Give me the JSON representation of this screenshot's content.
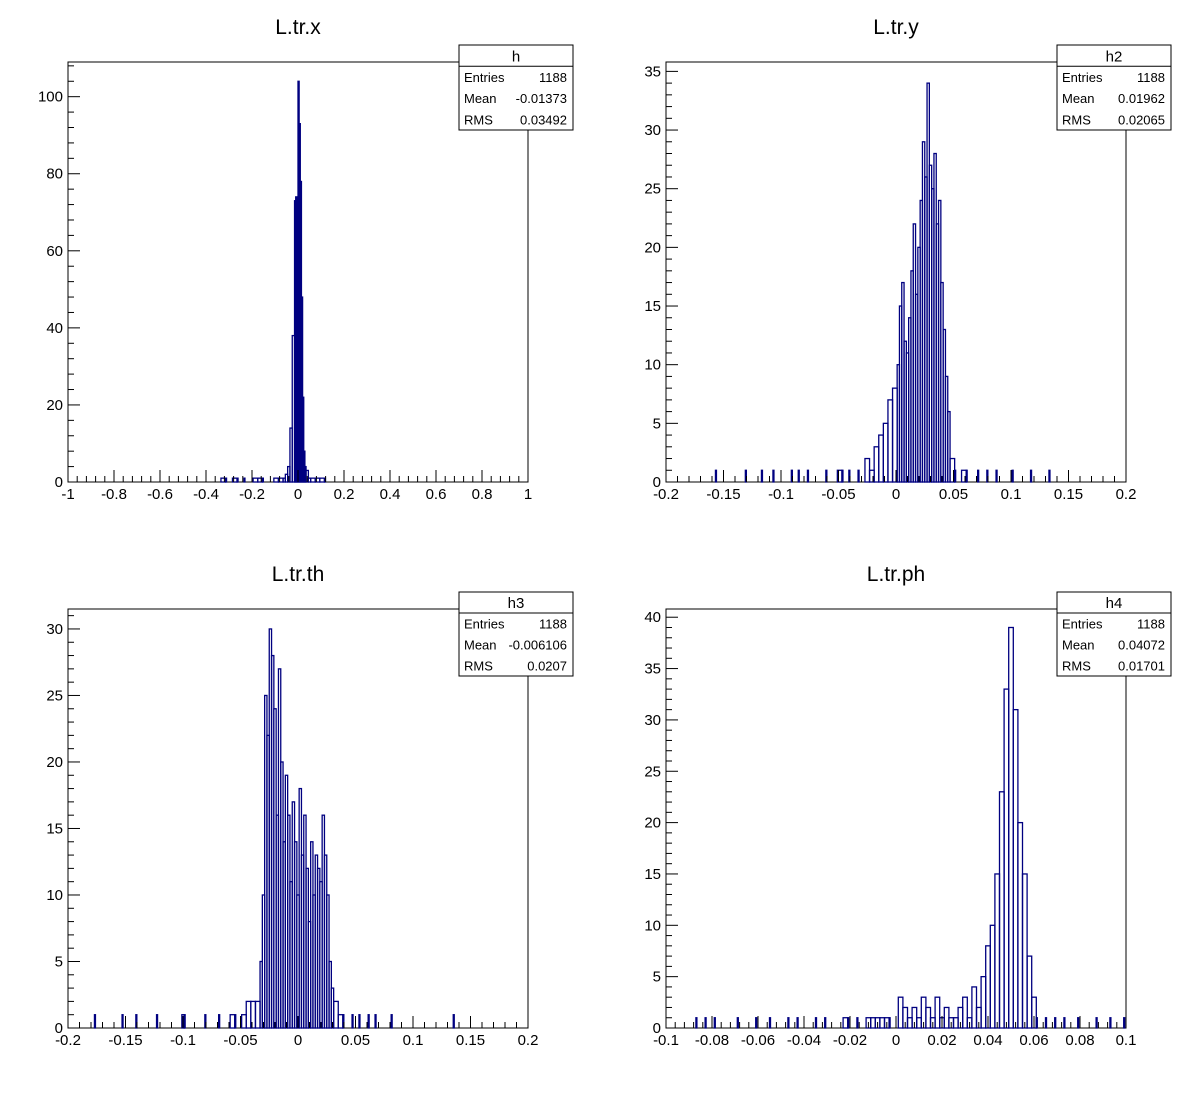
{
  "chart_data": [
    {
      "type": "bar",
      "title": "L.tr.x",
      "xlim": [
        -1,
        1
      ],
      "ylim": [
        0,
        109
      ],
      "xticks": [
        -1,
        -0.8,
        -0.6,
        -0.4,
        -0.2,
        0,
        0.2,
        0.4,
        0.6,
        0.8,
        1
      ],
      "xtick_labels": [
        "-1",
        "-0.8",
        "-0.6",
        "-0.4",
        "-0.2",
        "0",
        "0.2",
        "0.4",
        "0.6",
        "0.8",
        "1"
      ],
      "yticks": [
        0,
        20,
        40,
        60,
        80,
        100
      ],
      "ytick_labels": [
        "0",
        "20",
        "40",
        "60",
        "80",
        "100"
      ],
      "stats": {
        "name": "h",
        "entries_label": "Entries",
        "entries": "1188",
        "mean_label": "Mean",
        "mean": "-0.01373",
        "rms_label": "RMS",
        "rms": "0.03492"
      },
      "series": [
        {
          "color": "#000080",
          "bins": [
            [
              -0.335,
              1
            ],
            [
              -0.315,
              1
            ],
            [
              -0.285,
              1
            ],
            [
              -0.265,
              1
            ],
            [
              -0.235,
              1
            ],
            [
              -0.195,
              1
            ],
            [
              -0.175,
              1
            ],
            [
              -0.155,
              1
            ],
            [
              -0.105,
              1
            ],
            [
              -0.085,
              1
            ],
            [
              -0.065,
              1
            ],
            [
              -0.055,
              2
            ],
            [
              -0.045,
              4
            ],
            [
              -0.035,
              14
            ],
            [
              -0.025,
              38
            ],
            [
              -0.015,
              73
            ],
            [
              -0.01,
              74
            ],
            [
              -0.005,
              66
            ],
            [
              0.0,
              104
            ],
            [
              0.005,
              93
            ],
            [
              0.01,
              78
            ],
            [
              0.015,
              48
            ],
            [
              0.02,
              22
            ],
            [
              0.025,
              8
            ],
            [
              0.03,
              4
            ],
            [
              0.035,
              3
            ],
            [
              0.045,
              1
            ],
            [
              0.055,
              1
            ],
            [
              0.075,
              1
            ],
            [
              0.095,
              1
            ],
            [
              0.115,
              1
            ]
          ]
        }
      ]
    },
    {
      "type": "bar",
      "title": "L.tr.y",
      "xlim": [
        -0.2,
        0.2
      ],
      "ylim": [
        0,
        35.8
      ],
      "xticks": [
        -0.2,
        -0.15,
        -0.1,
        -0.05,
        0,
        0.05,
        0.1,
        0.15,
        0.2
      ],
      "xtick_labels": [
        "-0.2",
        "-0.15",
        "-0.1",
        "-0.05",
        "0",
        "0.05",
        "0.1",
        "0.15",
        "0.2"
      ],
      "yticks": [
        0,
        5,
        10,
        15,
        20,
        25,
        30,
        35
      ],
      "ytick_labels": [
        "0",
        "5",
        "10",
        "15",
        "20",
        "25",
        "30",
        "35"
      ],
      "stats": {
        "name": "h2",
        "entries_label": "Entries",
        "entries": "1188",
        "mean_label": "Mean",
        "mean": "0.01962",
        "rms_label": "RMS",
        "rms": "0.02065"
      },
      "series": [
        {
          "color": "#000080",
          "bins": [
            [
              -0.157,
              1
            ],
            [
              -0.131,
              1
            ],
            [
              -0.117,
              1
            ],
            [
              -0.107,
              1
            ],
            [
              -0.091,
              1
            ],
            [
              -0.085,
              1
            ],
            [
              -0.077,
              1
            ],
            [
              -0.061,
              1
            ],
            [
              -0.051,
              1
            ],
            [
              -0.047,
              1
            ],
            [
              -0.041,
              1
            ],
            [
              -0.033,
              1
            ],
            [
              -0.027,
              2
            ],
            [
              -0.023,
              1
            ],
            [
              -0.019,
              3
            ],
            [
              -0.015,
              4
            ],
            [
              -0.011,
              5
            ],
            [
              -0.007,
              7
            ],
            [
              -0.003,
              8
            ],
            [
              0.001,
              10
            ],
            [
              0.003,
              15
            ],
            [
              0.005,
              17
            ],
            [
              0.007,
              12
            ],
            [
              0.009,
              11
            ],
            [
              0.011,
              14
            ],
            [
              0.013,
              18
            ],
            [
              0.015,
              22
            ],
            [
              0.017,
              16
            ],
            [
              0.019,
              20
            ],
            [
              0.021,
              24
            ],
            [
              0.023,
              29
            ],
            [
              0.025,
              26
            ],
            [
              0.027,
              34
            ],
            [
              0.029,
              27
            ],
            [
              0.031,
              25
            ],
            [
              0.033,
              28
            ],
            [
              0.035,
              22
            ],
            [
              0.037,
              24
            ],
            [
              0.039,
              17
            ],
            [
              0.041,
              13
            ],
            [
              0.043,
              9
            ],
            [
              0.045,
              6
            ],
            [
              0.047,
              2
            ],
            [
              0.051,
              1
            ],
            [
              0.057,
              1
            ],
            [
              0.061,
              1
            ],
            [
              0.071,
              1
            ],
            [
              0.079,
              1
            ],
            [
              0.087,
              1
            ],
            [
              0.101,
              1
            ],
            [
              0.117,
              1
            ],
            [
              0.133,
              1
            ]
          ]
        }
      ]
    },
    {
      "type": "bar",
      "title": "L.tr.th",
      "xlim": [
        -0.2,
        0.2
      ],
      "ylim": [
        0,
        31.5
      ],
      "xticks": [
        -0.2,
        -0.15,
        -0.1,
        -0.05,
        0,
        0.05,
        0.1,
        0.15,
        0.2
      ],
      "xtick_labels": [
        "-0.2",
        "-0.15",
        "-0.1",
        "-0.05",
        "0",
        "0.05",
        "0.1",
        "0.15",
        "0.2"
      ],
      "yticks": [
        0,
        5,
        10,
        15,
        20,
        25,
        30
      ],
      "ytick_labels": [
        "0",
        "5",
        "10",
        "15",
        "20",
        "25",
        "30"
      ],
      "stats": {
        "name": "h3",
        "entries_label": "Entries",
        "entries": "1188",
        "mean_label": "Mean",
        "mean": "-0.006106",
        "rms_label": "RMS",
        "rms": "0.0207"
      },
      "series": [
        {
          "color": "#000080",
          "bins": [
            [
              -0.177,
              1
            ],
            [
              -0.153,
              1
            ],
            [
              -0.141,
              1
            ],
            [
              -0.123,
              1
            ],
            [
              -0.101,
              1
            ],
            [
              -0.099,
              1
            ],
            [
              -0.081,
              1
            ],
            [
              -0.069,
              1
            ],
            [
              -0.059,
              1
            ],
            [
              -0.055,
              1
            ],
            [
              -0.049,
              1
            ],
            [
              -0.045,
              2
            ],
            [
              -0.041,
              2
            ],
            [
              -0.037,
              2
            ],
            [
              -0.033,
              5
            ],
            [
              -0.031,
              10
            ],
            [
              -0.029,
              25
            ],
            [
              -0.027,
              22
            ],
            [
              -0.025,
              30
            ],
            [
              -0.023,
              28
            ],
            [
              -0.021,
              24
            ],
            [
              -0.019,
              16
            ],
            [
              -0.017,
              27
            ],
            [
              -0.015,
              20
            ],
            [
              -0.013,
              14
            ],
            [
              -0.011,
              19
            ],
            [
              -0.009,
              16
            ],
            [
              -0.007,
              11
            ],
            [
              -0.005,
              17
            ],
            [
              -0.003,
              14
            ],
            [
              -0.001,
              10
            ],
            [
              0.001,
              18
            ],
            [
              0.003,
              13
            ],
            [
              0.005,
              16
            ],
            [
              0.007,
              12
            ],
            [
              0.009,
              8
            ],
            [
              0.011,
              14
            ],
            [
              0.013,
              10
            ],
            [
              0.015,
              13
            ],
            [
              0.017,
              12
            ],
            [
              0.019,
              11
            ],
            [
              0.021,
              16
            ],
            [
              0.023,
              13
            ],
            [
              0.025,
              10
            ],
            [
              0.027,
              5
            ],
            [
              0.029,
              3
            ],
            [
              0.031,
              2
            ],
            [
              0.035,
              1
            ],
            [
              0.039,
              1
            ],
            [
              0.047,
              1
            ],
            [
              0.053,
              1
            ],
            [
              0.061,
              1
            ],
            [
              0.067,
              1
            ],
            [
              0.081,
              1
            ],
            [
              0.135,
              1
            ]
          ]
        }
      ]
    },
    {
      "type": "bar",
      "title": "L.tr.ph",
      "xlim": [
        -0.1,
        0.1
      ],
      "ylim": [
        0,
        40.8
      ],
      "xticks": [
        -0.1,
        -0.08,
        -0.06,
        -0.04,
        -0.02,
        0,
        0.02,
        0.04,
        0.06,
        0.08,
        0.1
      ],
      "xtick_labels": [
        "-0.1",
        "-0.08",
        "-0.06",
        "-0.04",
        "-0.02",
        "0",
        "0.02",
        "0.04",
        "0.06",
        "0.08",
        "0.1"
      ],
      "yticks": [
        0,
        5,
        10,
        15,
        20,
        25,
        30,
        35,
        40
      ],
      "ytick_labels": [
        "0",
        "5",
        "10",
        "15",
        "20",
        "25",
        "30",
        "35",
        "40"
      ],
      "stats": {
        "name": "h4",
        "entries_label": "Entries",
        "entries": "1188",
        "mean_label": "Mean",
        "mean": "0.04072",
        "rms_label": "RMS",
        "rms": "0.01701"
      },
      "series": [
        {
          "color": "#000080",
          "bins": [
            [
              -0.087,
              1
            ],
            [
              -0.083,
              1
            ],
            [
              -0.079,
              1
            ],
            [
              -0.069,
              1
            ],
            [
              -0.061,
              1
            ],
            [
              -0.055,
              1
            ],
            [
              -0.047,
              1
            ],
            [
              -0.043,
              1
            ],
            [
              -0.035,
              1
            ],
            [
              -0.031,
              1
            ],
            [
              -0.023,
              1
            ],
            [
              -0.021,
              1
            ],
            [
              -0.017,
              1
            ],
            [
              -0.013,
              1
            ],
            [
              -0.011,
              1
            ],
            [
              -0.009,
              1
            ],
            [
              -0.007,
              1
            ],
            [
              -0.005,
              1
            ],
            [
              -0.003,
              1
            ],
            [
              0.001,
              3
            ],
            [
              0.003,
              2
            ],
            [
              0.005,
              1
            ],
            [
              0.007,
              2
            ],
            [
              0.009,
              1
            ],
            [
              0.011,
              3
            ],
            [
              0.013,
              2
            ],
            [
              0.015,
              1
            ],
            [
              0.017,
              3
            ],
            [
              0.019,
              1
            ],
            [
              0.021,
              2
            ],
            [
              0.023,
              1
            ],
            [
              0.025,
              1
            ],
            [
              0.027,
              2
            ],
            [
              0.029,
              3
            ],
            [
              0.031,
              1
            ],
            [
              0.033,
              4
            ],
            [
              0.035,
              2
            ],
            [
              0.037,
              5
            ],
            [
              0.039,
              8
            ],
            [
              0.041,
              10
            ],
            [
              0.043,
              15
            ],
            [
              0.045,
              23
            ],
            [
              0.047,
              33
            ],
            [
              0.049,
              39
            ],
            [
              0.051,
              31
            ],
            [
              0.053,
              20
            ],
            [
              0.055,
              15
            ],
            [
              0.057,
              7
            ],
            [
              0.059,
              3
            ],
            [
              0.061,
              1
            ],
            [
              0.065,
              1
            ],
            [
              0.069,
              1
            ],
            [
              0.073,
              1
            ],
            [
              0.079,
              1
            ],
            [
              0.087,
              1
            ],
            [
              0.093,
              1
            ],
            [
              0.099,
              1
            ]
          ]
        }
      ]
    }
  ]
}
